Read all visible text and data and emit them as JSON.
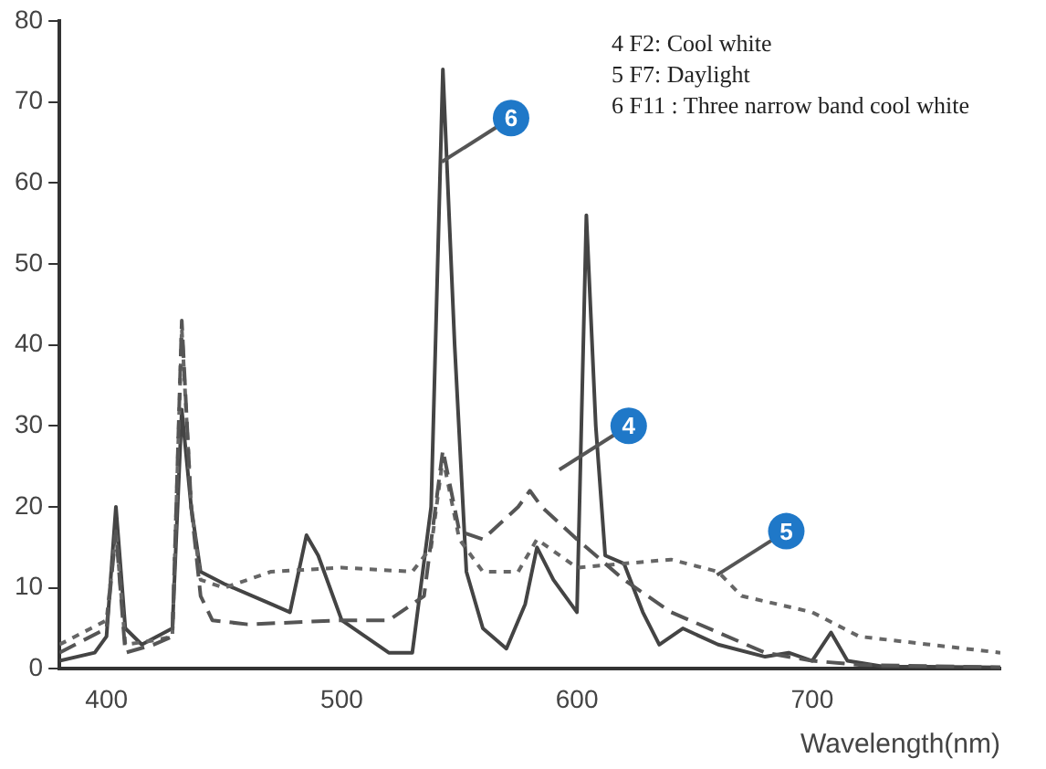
{
  "chart_data": {
    "type": "line",
    "xlabel": "Wavelength(nm)",
    "xlim": [
      380,
      780
    ],
    "xticks": [
      400,
      500,
      600,
      700
    ],
    "ylim": [
      0,
      80
    ],
    "yticks": [
      0,
      10,
      20,
      30,
      40,
      50,
      60,
      70,
      80
    ],
    "grid": false,
    "legend": false,
    "marker": "none",
    "series": [
      {
        "color": "#555555",
        "line_style": "dashed",
        "x": [
          380,
          400,
          404,
          408,
          420,
          428,
          432,
          436,
          440,
          445,
          460,
          500,
          520,
          535,
          543,
          550,
          560,
          575,
          580,
          585,
          600,
          620,
          640,
          660,
          680,
          700,
          720,
          780
        ],
        "values": [
          2,
          5,
          17,
          2,
          3,
          4,
          43,
          20,
          9,
          6,
          5.5,
          6,
          6,
          9,
          27,
          17,
          16,
          20,
          22,
          20,
          16,
          11,
          7,
          4.5,
          2,
          1,
          0.5,
          0.2
        ]
      },
      {
        "color": "#666666",
        "line_style": "dotted",
        "x": [
          380,
          400,
          404,
          408,
          420,
          428,
          432,
          436,
          440,
          450,
          470,
          500,
          530,
          538,
          543,
          550,
          560,
          575,
          583,
          600,
          620,
          640,
          660,
          670,
          700,
          720,
          750,
          780
        ],
        "values": [
          3,
          6,
          17,
          3,
          3.5,
          4,
          42,
          20,
          11,
          10,
          12,
          12.5,
          12,
          15,
          26,
          16,
          12,
          12,
          16,
          12.5,
          13,
          13.5,
          12,
          9,
          7,
          4,
          3,
          2
        ]
      },
      {
        "color": "#444444",
        "line_style": "solid",
        "x": [
          380,
          395,
          400,
          404,
          408,
          415,
          428,
          432,
          436,
          440,
          450,
          470,
          478,
          485,
          490,
          500,
          520,
          530,
          538,
          543,
          548,
          553,
          560,
          570,
          578,
          583,
          590,
          600,
          604,
          608,
          612,
          620,
          628,
          635,
          645,
          660,
          680,
          690,
          700,
          708,
          715,
          730,
          780
        ],
        "values": [
          1,
          2,
          4,
          20,
          5,
          3,
          5,
          32,
          20,
          12,
          10.5,
          8,
          7,
          16.5,
          14,
          6,
          2,
          2,
          20,
          74,
          40,
          12,
          5,
          2.5,
          8,
          15,
          11,
          7,
          56,
          30,
          14,
          13,
          7,
          3,
          5,
          3,
          1.5,
          2,
          1,
          4.5,
          1,
          0.3,
          0.2
        ]
      }
    ],
    "annotations": [
      "4 F2: Cool white",
      "5 F7: Daylight",
      "6 F11 : Three narrow band cool white",
      {
        "text": "6",
        "x": 572,
        "y": 68
      },
      {
        "text": "4",
        "x": 622,
        "y": 30
      },
      {
        "text": "5",
        "x": 689,
        "y": 17
      }
    ]
  }
}
